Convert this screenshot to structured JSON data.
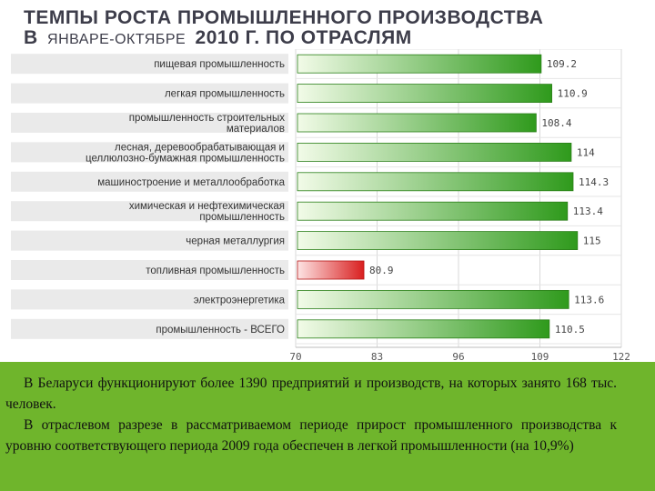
{
  "title": {
    "line1": "ТЕМПЫ РОСТА ПРОМЫШЛЕННОГО ПРОИЗВОДСТВА",
    "line2_prefix": "В",
    "line2_small": "ЯНВАРЕ-ОКТЯБРЕ",
    "line2_rest": "2010 Г. ПО ОТРАСЛЯМ"
  },
  "chart_data": {
    "type": "bar",
    "orientation": "horizontal",
    "categories": [
      "пищевая промышленность",
      "легкая промышленность",
      "промышленность строительных материалов",
      "лесная, деревообрабатывающая и целлюлозно-бумажная промышленность",
      "машиностроение и металлообработка",
      "химическая и нефтехимическая промышленность",
      "черная металлургия",
      "топливная промышленность",
      "электроэнергетика",
      "промышленность - ВСЕГО"
    ],
    "category_lines": [
      [
        "пищевая промышленность"
      ],
      [
        "легкая промышленность"
      ],
      [
        "промышленность строительных",
        "материалов"
      ],
      [
        "лесная, деревообрабатывающая и",
        "целлюлозно-бумажная промышленность"
      ],
      [
        "машиностроение и металлообработка"
      ],
      [
        "химическая и нефтехимическая",
        "промышленность"
      ],
      [
        "черная металлургия"
      ],
      [
        "топливная промышленность"
      ],
      [
        "электроэнергетика"
      ],
      [
        "промышленность - ВСЕГО"
      ]
    ],
    "values": [
      109.2,
      110.9,
      108.4,
      114,
      114.3,
      113.4,
      115,
      80.9,
      113.6,
      110.5
    ],
    "value_labels": [
      "109.2",
      "110.9",
      "108.4",
      "114",
      "114.3",
      "113.4",
      "115",
      "80.9",
      "113.6",
      "110.5"
    ],
    "xlim": [
      70,
      122
    ],
    "xticks": [
      70,
      83,
      96,
      109,
      122
    ],
    "xlabel": "",
    "ylabel": "",
    "grid": true,
    "colors": {
      "positive": "#2f9a1c",
      "positive_light": "#f2fbe8",
      "negative": "#d91f1f",
      "negative_light": "#fde4e4",
      "label_box": "#eaeaea"
    }
  },
  "text_block": {
    "p1": "В Беларуси функционируют более 1390 предприятий и производств, на которых занято 168 тыс. человек.",
    "p2": "В отраслевом разрезе в рассматриваемом периоде прирост промышленного производства к уровню соответствующего периода 2009 года обеспечен в легкой промышленности (на 10,9%)"
  },
  "colors": {
    "title": "#3d3d4a",
    "background_bottom": "#6fb52c"
  }
}
